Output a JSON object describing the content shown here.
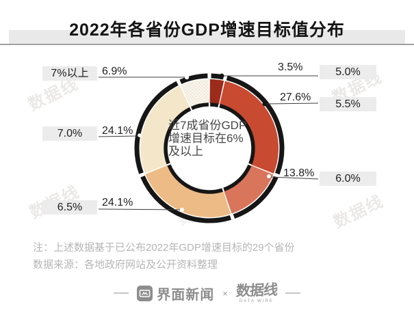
{
  "title": "2022年各省份GDP增速目标值分布",
  "watermark": "数据线",
  "chart_data": {
    "type": "pie",
    "subtype": "donut",
    "title": "2022年各省份GDP增速目标值分布",
    "unit": "%",
    "start_angle_deg": 0,
    "direction": "clockwise",
    "center_text": [
      "近7成省份GDP",
      "增速目标在6%",
      "及以上"
    ],
    "segments": [
      {
        "label": "5.0%",
        "value": 3.5,
        "value_label": "3.5%",
        "color": "#9b2b1a"
      },
      {
        "label": "5.5%",
        "value": 27.6,
        "value_label": "27.6%",
        "color": "#c84a31"
      },
      {
        "label": "6.0%",
        "value": 13.8,
        "value_label": "13.8%",
        "color": "#d8755b"
      },
      {
        "label": "6.5%",
        "value": 24.1,
        "value_label": "24.1%",
        "color": "#edbb86"
      },
      {
        "label": "7.0%",
        "value": 24.1,
        "value_label": "24.1%",
        "color": "#f4e6c9"
      },
      {
        "label": "7%以上",
        "value": 6.9,
        "value_label": "6.9%",
        "color": "#f8f4ea",
        "pattern": "dots"
      }
    ]
  },
  "notes": {
    "line1": "注：上述数据基于已公布2022年GDP增速目标的29个省份",
    "line2": "数据来源：各地政府网站及公开资料整理"
  },
  "footer": {
    "jiemian_label": "界面新闻",
    "separator": "×",
    "datawire_label": "数据线",
    "datawire_sub": "DATA WIRE"
  }
}
